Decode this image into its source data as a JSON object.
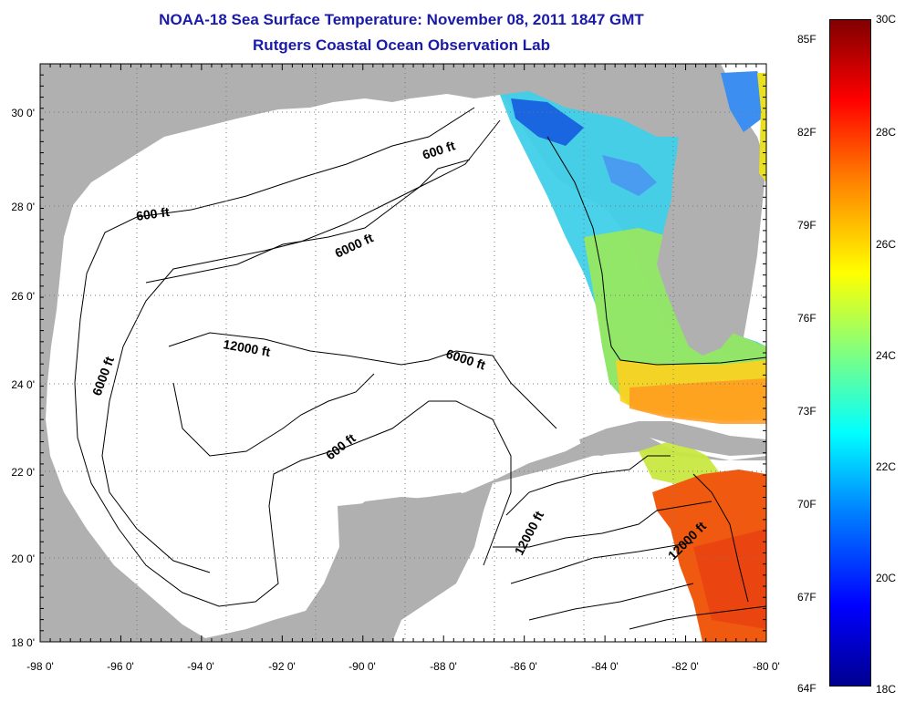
{
  "header": {
    "title": "NOAA-18 Sea Surface Temperature:  November 08, 2011 1847 GMT",
    "subtitle": "Rutgers Coastal Ocean Observation Lab"
  },
  "map": {
    "x_ticks": [
      "-98 0'",
      "-96 0'",
      "-94 0'",
      "-92 0'",
      "-90 0'",
      "-88 0'",
      "-86 0'",
      "-84 0'",
      "-82 0'",
      "-80 0'"
    ],
    "y_ticks": [
      "30 0'",
      "28 0'",
      "26 0'",
      "24 0'",
      "22 0'",
      "20 0'",
      "18 0'"
    ],
    "land_color": "#b0b0b0",
    "water_color": "#ffffff",
    "contour_labels": [
      "600 ft",
      "600 ft",
      "600 ft",
      "6000 ft",
      "6000 ft",
      "6000 ft",
      "12000 ft",
      "12000 ft",
      "12000 ft"
    ]
  },
  "colorbar": {
    "fahrenheit_labels": [
      "85F",
      "82F",
      "79F",
      "76F",
      "73F",
      "70F",
      "67F",
      "64F"
    ],
    "celsius_labels": [
      "30C",
      "28C",
      "26C",
      "24C",
      "22C",
      "20C",
      "18C"
    ],
    "colors": [
      "#00008f",
      "#0000ff",
      "#0080ff",
      "#00ffff",
      "#80ff80",
      "#ffff00",
      "#ff8000",
      "#ff0000",
      "#800000"
    ]
  }
}
